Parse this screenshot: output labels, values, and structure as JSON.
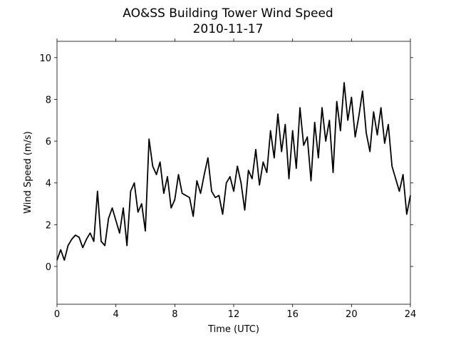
{
  "chart_data": {
    "type": "line",
    "title": "AO&SS Building Tower Wind Speed",
    "subtitle": "2010-11-17",
    "x_label": "Time (UTC)",
    "y_label": "Wind Speed (m/s)",
    "x": [
      0,
      0.25,
      0.5,
      0.75,
      1,
      1.25,
      1.5,
      1.75,
      2,
      2.25,
      2.5,
      2.75,
      3,
      3.25,
      3.5,
      3.75,
      4,
      4.25,
      4.5,
      4.75,
      5,
      5.25,
      5.5,
      5.75,
      6,
      6.25,
      6.5,
      6.75,
      7,
      7.25,
      7.5,
      7.75,
      8,
      8.25,
      8.5,
      8.75,
      9,
      9.25,
      9.5,
      9.75,
      10,
      10.25,
      10.5,
      10.75,
      11,
      11.25,
      11.5,
      11.75,
      12,
      12.25,
      12.5,
      12.75,
      13,
      13.25,
      13.5,
      13.75,
      14,
      14.25,
      14.5,
      14.75,
      15,
      15.25,
      15.5,
      15.75,
      16,
      16.25,
      16.5,
      16.75,
      17,
      17.25,
      17.5,
      17.75,
      18,
      18.25,
      18.5,
      18.75,
      19,
      19.25,
      19.5,
      19.75,
      20,
      20.25,
      20.5,
      20.75,
      21,
      21.25,
      21.5,
      21.75,
      22,
      22.25,
      22.5,
      22.75,
      23,
      23.25,
      23.5,
      23.75,
      24
    ],
    "series": [
      {
        "name": "Wind Speed",
        "color": "#000000",
        "values": [
          0.3,
          0.8,
          0.3,
          1.0,
          1.3,
          1.5,
          1.4,
          0.9,
          1.3,
          1.6,
          1.2,
          3.6,
          1.2,
          1.0,
          2.3,
          2.8,
          2.2,
          1.6,
          2.8,
          1.0,
          3.6,
          4.0,
          2.6,
          3.0,
          1.7,
          6.1,
          4.8,
          4.4,
          5.0,
          3.5,
          4.3,
          2.8,
          3.2,
          4.4,
          3.5,
          3.4,
          3.3,
          2.4,
          4.1,
          3.5,
          4.4,
          5.2,
          3.6,
          3.3,
          3.4,
          2.5,
          4.0,
          4.3,
          3.6,
          4.8,
          4.0,
          2.7,
          4.6,
          4.2,
          5.6,
          3.9,
          5.0,
          4.5,
          6.5,
          5.2,
          7.3,
          5.5,
          6.8,
          4.2,
          6.5,
          4.7,
          7.6,
          5.8,
          6.2,
          4.1,
          6.9,
          5.2,
          7.6,
          6.0,
          7.0,
          4.5,
          7.9,
          6.5,
          8.8,
          7.0,
          8.1,
          6.2,
          7.2,
          8.4,
          6.4,
          5.5,
          7.4,
          6.3,
          7.6,
          5.9,
          6.8,
          4.8,
          4.2,
          3.6,
          4.4,
          2.5,
          3.4
        ]
      }
    ],
    "xlim": [
      0,
      24
    ],
    "xticks": [
      0,
      4,
      8,
      12,
      16,
      20,
      24
    ],
    "ylim": [
      -1.81,
      10.78
    ],
    "yticks": [
      0,
      2,
      4,
      6,
      8,
      10
    ],
    "grid": false
  }
}
